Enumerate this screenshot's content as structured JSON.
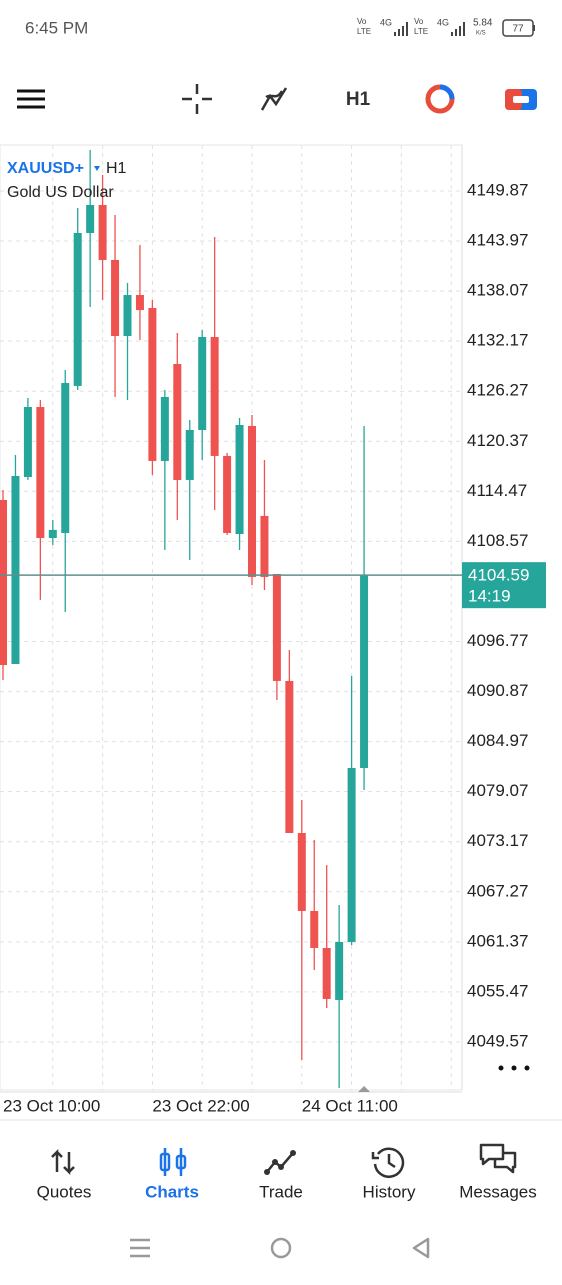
{
  "status_bar": {
    "time": "6:45 PM",
    "sim1": {
      "vo": "Vo",
      "lte": "LTE",
      "net": "4G"
    },
    "sim2": {
      "vo": "Vo",
      "lte": "LTE",
      "net": "4G"
    },
    "speed": "5.84",
    "speed_unit": "K/S",
    "battery": "77"
  },
  "chart_data": {
    "type": "candlestick",
    "symbol": "XAUUSD+",
    "timeframe": "H1",
    "description": "Gold US Dollar",
    "categories": [
      "23 Oct 10:00",
      null,
      null,
      null,
      null,
      null,
      null,
      null,
      null,
      null,
      null,
      null,
      "23 Oct 22:00",
      null,
      null,
      null,
      null,
      null,
      null,
      null,
      null,
      null,
      null,
      null,
      "24 Oct 11:00",
      null,
      null,
      null,
      null,
      null
    ],
    "open": [
      4113.45,
      4094.12,
      4116.16,
      4124.41,
      4108.97,
      4109.56,
      4126.89,
      4144.92,
      4148.22,
      4141.74,
      4132.78,
      4137.61,
      4136.08,
      4118.05,
      4129.48,
      4115.81,
      4121.7,
      4132.66,
      4118.64,
      4109.44,
      4122.17,
      4111.57,
      4104.73,
      4092.12,
      4074.2,
      4065.01,
      4060.65,
      4054.52,
      4061.36,
      4081.86
    ],
    "high": [
      4114.63,
      4118.75,
      4125.47,
      4125.24,
      4111.09,
      4128.77,
      4147.87,
      4154.7,
      4151.76,
      4147.04,
      4139.03,
      4143.51,
      4137.02,
      4126.42,
      4133.13,
      4122.88,
      4133.49,
      4144.45,
      4118.99,
      4123.12,
      4123.47,
      4118.17,
      4104.73,
      4095.77,
      4078.09,
      4073.38,
      4070.43,
      4065.72,
      4092.71,
      4122.17
    ],
    "low": [
      4092.24,
      4094.12,
      4115.81,
      4101.67,
      4108.15,
      4100.25,
      4126.42,
      4136.2,
      4137.02,
      4125.59,
      4125.24,
      4132.31,
      4116.4,
      4107.56,
      4111.09,
      4106.38,
      4118.17,
      4112.27,
      4109.33,
      4107.56,
      4103.43,
      4102.84,
      4089.88,
      4074.2,
      4047.45,
      4058.06,
      4053.58,
      4044.15,
      4061.0,
      4079.27
    ],
    "close": [
      4094.0,
      4116.28,
      4124.41,
      4108.97,
      4109.92,
      4127.24,
      4144.92,
      4148.22,
      4141.74,
      4132.78,
      4137.61,
      4135.84,
      4118.05,
      4125.59,
      4115.81,
      4121.7,
      4132.66,
      4118.64,
      4109.56,
      4122.29,
      4104.38,
      4104.38,
      4092.12,
      4074.2,
      4065.01,
      4060.65,
      4054.64,
      4061.36,
      4081.86,
      4104.59
    ],
    "up_color": "#26a69a",
    "down_color": "#ef5350",
    "ylim": [
      4043.91,
      4155.29
    ],
    "yticks": [
      4149.87,
      4143.97,
      4138.07,
      4132.17,
      4126.27,
      4120.37,
      4114.47,
      4108.57,
      4096.77,
      4090.87,
      4084.97,
      4079.07,
      4073.17,
      4067.27,
      4061.37,
      4055.47,
      4049.57
    ],
    "grid": true,
    "last_price": 4104.59,
    "countdown": "14:19"
  },
  "tab_bar": {
    "tabs": [
      {
        "label": "Quotes"
      },
      {
        "label": "Charts"
      },
      {
        "label": "Trade"
      },
      {
        "label": "History"
      },
      {
        "label": "Messages"
      }
    ],
    "active": 1
  }
}
